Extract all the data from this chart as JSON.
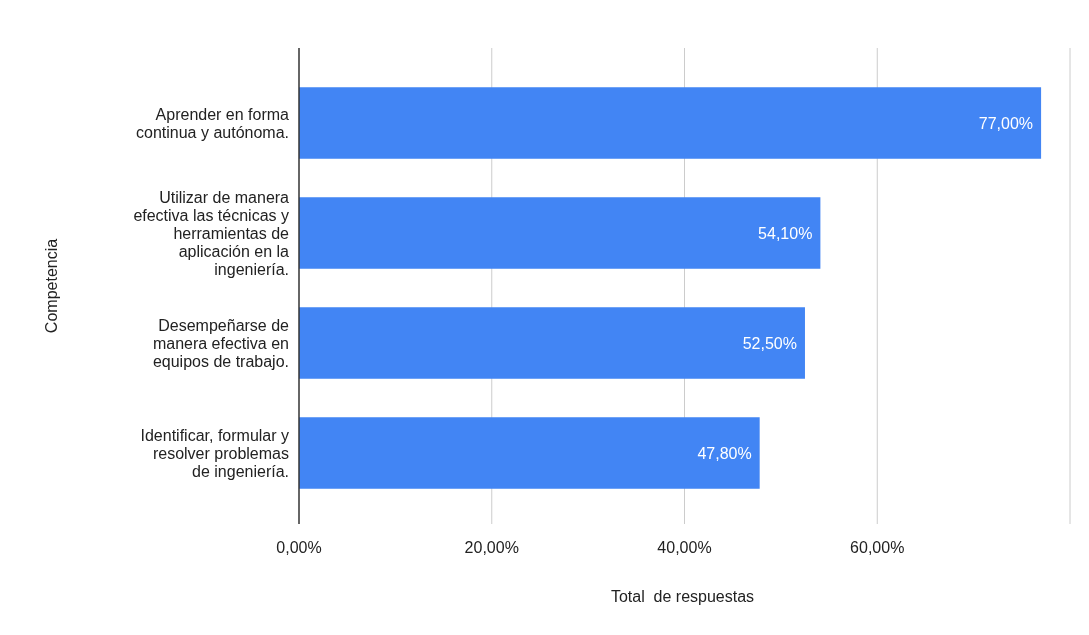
{
  "chart_data": {
    "type": "bar",
    "orientation": "horizontal",
    "categories": [
      "Aprender en forma\ncontinua y autónoma.",
      "Utilizar de manera\nefectiva las técnicas y\nherramientas de\naplicación en la\ningeniería.",
      "Desempeñarse de\nmanera efectiva en\nequipos de trabajo.",
      "Identificar, formular y\nresolver problemas\nde ingeniería."
    ],
    "values": [
      77,
      54.1,
      52.5,
      47.8
    ],
    "value_labels": [
      "77,00%",
      "54,10%",
      "52,50%",
      "47,80%"
    ],
    "color": "#4285f4",
    "xlim": [
      0,
      80
    ],
    "xticks": [
      {
        "value": 0,
        "label": "0,00%"
      },
      {
        "value": 20,
        "label": "20,00%"
      },
      {
        "value": 40,
        "label": "40,00%"
      },
      {
        "value": 60,
        "label": "60,00%"
      },
      {
        "value": 80,
        "label": null
      }
    ],
    "xlabel": "Total  de respuestas",
    "ylabel": "Competencia",
    "grid": "x"
  }
}
